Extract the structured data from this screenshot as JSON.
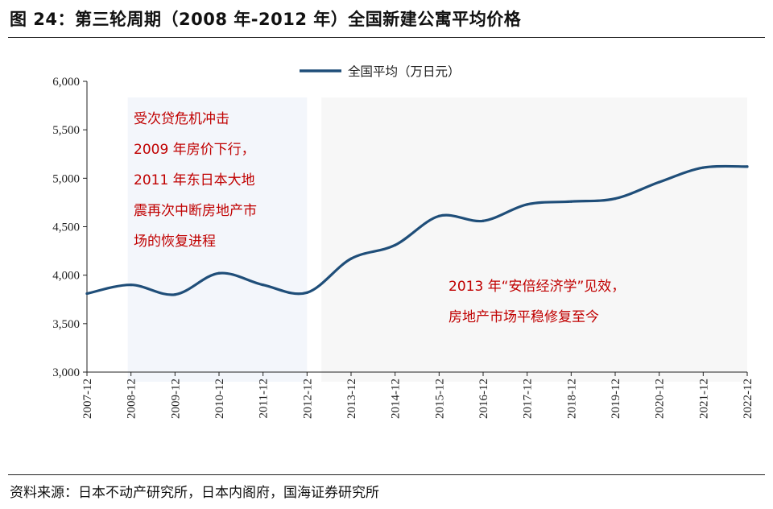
{
  "figure": {
    "title": "图 24：第三轮周期（2008 年-2012 年）全国新建公寓平均价格",
    "source": "资料来源：日本不动产研究所，日本内阁府，国海证券研究所"
  },
  "chart_data": {
    "type": "line",
    "title": "",
    "xlabel": "",
    "ylabel": "",
    "ylim": [
      3000,
      6000
    ],
    "yticks": [
      3000,
      3500,
      4000,
      4500,
      5000,
      5500,
      6000
    ],
    "ytick_labels": [
      "3,000",
      "3,500",
      "4,000",
      "4,500",
      "5,000",
      "5,500",
      "6,000"
    ],
    "x_labels": [
      "2007-12",
      "2008-12",
      "2009-12",
      "2010-12",
      "2011-12",
      "2012-12",
      "2013-12",
      "2014-12",
      "2015-12",
      "2016-12",
      "2017-12",
      "2018-12",
      "2019-12",
      "2020-12",
      "2021-12",
      "2022-12"
    ],
    "grid": false,
    "legend_position": "top",
    "series": [
      {
        "name": "全国平均（万日元）",
        "color": "#1f4e79",
        "values": [
          3810,
          3900,
          3800,
          4020,
          3900,
          3820,
          4170,
          4310,
          4610,
          4560,
          4730,
          4760,
          4790,
          4960,
          5110,
          5120
        ]
      }
    ],
    "shaded_periods": [
      {
        "from_index": 1,
        "to_index": 5,
        "color": "#f3f6fb"
      },
      {
        "from_index": 5.4,
        "to_index": 15,
        "color": "#f7f7f7"
      }
    ],
    "annotations": [
      {
        "id": "crisis",
        "lines": [
          "受次贷危机冲击",
          "2009 年房价下行，",
          "2011 年东日本大地",
          "震再次中断房地产市",
          "场的恢复进程"
        ]
      },
      {
        "id": "abenomics",
        "lines": [
          "2013 年“安倍经济学”见效，",
          "房地产市场平稳修复至今"
        ]
      }
    ]
  }
}
